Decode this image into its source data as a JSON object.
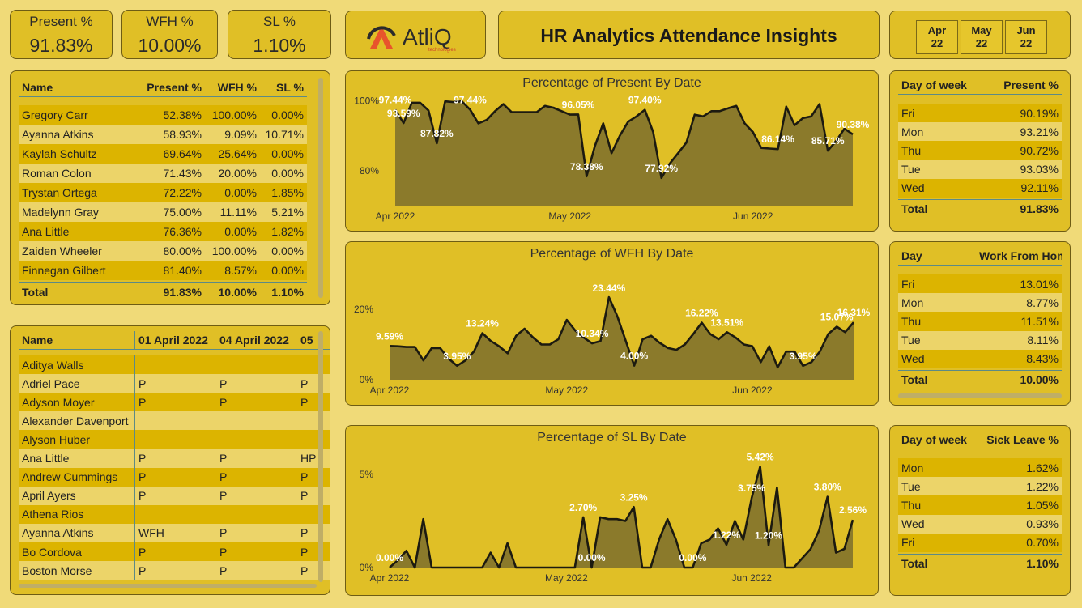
{
  "kpis": [
    {
      "label": "Present %",
      "value": "91.83%"
    },
    {
      "label": "WFH %",
      "value": "10.00%"
    },
    {
      "label": "SL %",
      "value": "1.10%"
    }
  ],
  "logo": {
    "name": "AtliQ",
    "tagline": "technologies"
  },
  "title": "HR Analytics Attendance Insights",
  "month_slicer": [
    "Apr 22",
    "May 22",
    "Jun 22"
  ],
  "employee_table": {
    "columns": [
      "Name",
      "Present %",
      "WFH %",
      "SL %"
    ],
    "rows": [
      [
        "Gregory Carr",
        "52.38%",
        "100.00%",
        "0.00%"
      ],
      [
        "Ayanna Atkins",
        "58.93%",
        "9.09%",
        "10.71%"
      ],
      [
        "Kaylah Schultz",
        "69.64%",
        "25.64%",
        "0.00%"
      ],
      [
        "Roman Colon",
        "71.43%",
        "20.00%",
        "0.00%"
      ],
      [
        "Trystan Ortega",
        "72.22%",
        "0.00%",
        "1.85%"
      ],
      [
        "Madelynn Gray",
        "75.00%",
        "11.11%",
        "5.21%"
      ],
      [
        "Ana Little",
        "76.36%",
        "0.00%",
        "1.82%"
      ],
      [
        "Zaiden Wheeler",
        "80.00%",
        "100.00%",
        "0.00%"
      ],
      [
        "Finnegan Gilbert",
        "81.40%",
        "8.57%",
        "0.00%"
      ]
    ],
    "total": [
      "Total",
      "91.83%",
      "10.00%",
      "1.10%"
    ]
  },
  "attendance_table": {
    "columns": [
      "Name",
      "01 April 2022",
      "04 April 2022",
      "05"
    ],
    "rows": [
      [
        "Aditya Walls",
        null,
        null,
        null
      ],
      [
        "Adriel Pace",
        "P",
        "P",
        "P"
      ],
      [
        "Adyson Moyer",
        "P",
        "P",
        "P"
      ],
      [
        "Alexander Davenport",
        null,
        null,
        null
      ],
      [
        "Alyson Huber",
        null,
        null,
        null
      ],
      [
        "Ana Little",
        "P",
        "P",
        "HP"
      ],
      [
        "Andrew Cummings",
        "P",
        "P",
        "P"
      ],
      [
        "April Ayers",
        "P",
        "P",
        "P"
      ],
      [
        "Athena Rios",
        null,
        null,
        null
      ],
      [
        "Ayanna Atkins",
        "WFH",
        "P",
        "P"
      ],
      [
        "Bo Cordova",
        "P",
        "P",
        "P"
      ],
      [
        "Boston Morse",
        "P",
        "P",
        "P"
      ]
    ]
  },
  "day_tables": [
    {
      "columns": [
        "Day of week",
        "Present %"
      ],
      "rows": [
        [
          "Fri",
          "90.19%"
        ],
        [
          "Mon",
          "93.21%"
        ],
        [
          "Thu",
          "90.72%"
        ],
        [
          "Tue",
          "93.03%"
        ],
        [
          "Wed",
          "92.11%"
        ]
      ],
      "total": [
        "Total",
        "91.83%"
      ]
    },
    {
      "columns": [
        "Day",
        "Work From Home %"
      ],
      "rows": [
        [
          "Fri",
          "13.01%"
        ],
        [
          "Mon",
          "8.77%"
        ],
        [
          "Thu",
          "11.51%"
        ],
        [
          "Tue",
          "8.11%"
        ],
        [
          "Wed",
          "8.43%"
        ]
      ],
      "total": [
        "Total",
        "10.00%"
      ]
    },
    {
      "columns": [
        "Day of week",
        "Sick Leave %"
      ],
      "rows": [
        [
          "Mon",
          "1.62%"
        ],
        [
          "Tue",
          "1.22%"
        ],
        [
          "Thu",
          "1.05%"
        ],
        [
          "Wed",
          "0.93%"
        ],
        [
          "Fri",
          "0.70%"
        ]
      ],
      "total": [
        "Total",
        "1.10%"
      ]
    }
  ],
  "chart_data": [
    {
      "type": "area",
      "title": "Percentage of Present By Date",
      "color": "#1c1a10",
      "fill": "#8b7a2b",
      "categories": [
        "Apr 2022",
        null,
        null,
        null,
        null,
        null,
        null,
        null,
        null,
        null,
        null,
        null,
        null,
        null,
        null,
        null,
        null,
        null,
        null,
        null,
        null,
        "May 2022",
        null,
        null,
        null,
        null,
        null,
        null,
        null,
        null,
        null,
        null,
        null,
        null,
        null,
        null,
        null,
        null,
        null,
        null,
        null,
        null,
        null,
        "Jun 2022",
        null,
        null,
        null,
        null,
        null,
        null,
        null,
        null,
        null,
        null,
        null,
        null
      ],
      "values": [
        97.44,
        93.59,
        99.4,
        99.4,
        97.2,
        87.82,
        99.8,
        99.6,
        99.8,
        97.44,
        93.5,
        94.5,
        97.0,
        99.0,
        96.7,
        96.7,
        96.7,
        96.7,
        98.5,
        98.0,
        97.0,
        96.0,
        96.05,
        78.38,
        87.0,
        93.5,
        85.0,
        90.0,
        94.0,
        95.5,
        97.4,
        91.0,
        77.92,
        82.0,
        85.0,
        88.0,
        96.0,
        95.5,
        97.0,
        97.0,
        97.8,
        98.5,
        93.5,
        91.0,
        86.5,
        86.3,
        86.14,
        98.3,
        93.0,
        95.0,
        95.5,
        99.0,
        85.71,
        88.5,
        92.0,
        90.38
      ],
      "value_labels": [
        "97.44%",
        "93.59%",
        null,
        null,
        null,
        "87.82%",
        null,
        null,
        null,
        "97.44%",
        null,
        null,
        null,
        null,
        null,
        null,
        null,
        null,
        null,
        null,
        null,
        null,
        "96.05%",
        "78.38%",
        null,
        null,
        null,
        null,
        null,
        null,
        "97.40%",
        null,
        "77.92%",
        null,
        null,
        null,
        null,
        null,
        null,
        null,
        null,
        null,
        null,
        null,
        null,
        null,
        "86.14%",
        null,
        null,
        null,
        null,
        null,
        "85.71%",
        null,
        null,
        "90.38%"
      ],
      "ylim": [
        70,
        101
      ],
      "yticks": [
        {
          "value": 80,
          "label": "80%"
        },
        {
          "value": 100,
          "label": "100%"
        }
      ]
    },
    {
      "type": "area",
      "title": "Percentage of WFH By Date",
      "color": "#1c1a10",
      "fill": "#8b7a2b",
      "categories": [
        "Apr 2022",
        null,
        null,
        null,
        null,
        null,
        null,
        null,
        null,
        null,
        null,
        null,
        null,
        null,
        null,
        null,
        null,
        null,
        null,
        null,
        null,
        "May 2022",
        null,
        null,
        null,
        null,
        null,
        null,
        null,
        null,
        null,
        null,
        null,
        null,
        null,
        null,
        null,
        null,
        null,
        null,
        null,
        null,
        null,
        "Jun 2022",
        null,
        null,
        null,
        null,
        null,
        null,
        null,
        null,
        null,
        null,
        null,
        null
      ],
      "values": [
        9.59,
        9.5,
        9.3,
        9.3,
        5.5,
        9.0,
        9.0,
        6.0,
        3.95,
        5.5,
        8.0,
        13.24,
        11.0,
        9.5,
        7.5,
        12.5,
        14.5,
        12.0,
        10.0,
        10.0,
        11.5,
        17.0,
        14.0,
        12.0,
        10.34,
        11.0,
        23.44,
        18.0,
        11.0,
        4.0,
        11.5,
        12.5,
        10.5,
        9.0,
        8.5,
        10.0,
        13.0,
        16.22,
        13.0,
        11.5,
        13.51,
        12.0,
        10.0,
        9.5,
        5.0,
        9.5,
        3.5,
        8.0,
        8.0,
        3.95,
        5.0,
        8.0,
        13.0,
        15.07,
        13.5,
        16.31
      ],
      "value_labels": [
        "9.59%",
        null,
        null,
        null,
        null,
        null,
        null,
        null,
        "3.95%",
        null,
        null,
        "13.24%",
        null,
        null,
        null,
        null,
        null,
        null,
        null,
        null,
        null,
        null,
        null,
        null,
        "10.34%",
        null,
        "23.44%",
        null,
        null,
        "4.00%",
        null,
        null,
        null,
        null,
        null,
        null,
        null,
        "16.22%",
        null,
        null,
        "13.51%",
        null,
        null,
        null,
        null,
        null,
        null,
        null,
        null,
        "3.95%",
        null,
        null,
        null,
        "15.07%",
        null,
        "16.31%"
      ],
      "ylim": [
        0,
        26
      ],
      "yticks": [
        {
          "value": 0,
          "label": "0%"
        },
        {
          "value": 20,
          "label": "20%"
        }
      ]
    },
    {
      "type": "area",
      "title": "Percentage of SL By Date",
      "color": "#1c1a10",
      "fill": "#8b7a2b",
      "categories": [
        "Apr 2022",
        null,
        null,
        null,
        null,
        null,
        null,
        null,
        null,
        null,
        null,
        null,
        null,
        null,
        null,
        null,
        null,
        null,
        null,
        null,
        null,
        "May 2022",
        null,
        null,
        null,
        null,
        null,
        null,
        null,
        null,
        null,
        null,
        null,
        null,
        null,
        null,
        null,
        null,
        null,
        null,
        null,
        null,
        null,
        "Jun 2022",
        null,
        null,
        null,
        null,
        null,
        null,
        null,
        null,
        null,
        null,
        null,
        null
      ],
      "values": [
        0.0,
        0.4,
        0.9,
        0,
        2.6,
        0,
        0,
        0,
        0,
        0,
        0,
        0,
        0.8,
        0,
        1.3,
        0,
        0,
        0,
        0,
        0,
        0,
        0,
        0,
        2.7,
        0.0,
        2.7,
        2.6,
        2.6,
        2.5,
        3.25,
        0,
        0,
        1.5,
        2.6,
        1.5,
        0,
        0.0,
        1.3,
        1.5,
        2.1,
        1.22,
        2.5,
        1.5,
        3.75,
        5.42,
        1.2,
        4.3,
        0,
        0,
        0.5,
        1.0,
        2.0,
        3.8,
        0.8,
        1.0,
        2.56
      ],
      "value_labels": [
        "0.00%",
        null,
        null,
        null,
        null,
        null,
        null,
        null,
        null,
        null,
        null,
        null,
        null,
        null,
        null,
        null,
        null,
        null,
        null,
        null,
        null,
        null,
        null,
        "2.70%",
        "0.00%",
        null,
        null,
        null,
        null,
        "3.25%",
        null,
        null,
        null,
        null,
        null,
        null,
        "0.00%",
        null,
        null,
        null,
        "1.22%",
        null,
        null,
        "3.75%",
        "5.42%",
        "1.20%",
        null,
        null,
        null,
        null,
        null,
        null,
        "3.80%",
        null,
        null,
        "2.56%"
      ],
      "ylim": [
        0,
        6
      ],
      "yticks": [
        {
          "value": 0,
          "label": "0%"
        },
        {
          "value": 5,
          "label": "5%"
        }
      ]
    }
  ]
}
